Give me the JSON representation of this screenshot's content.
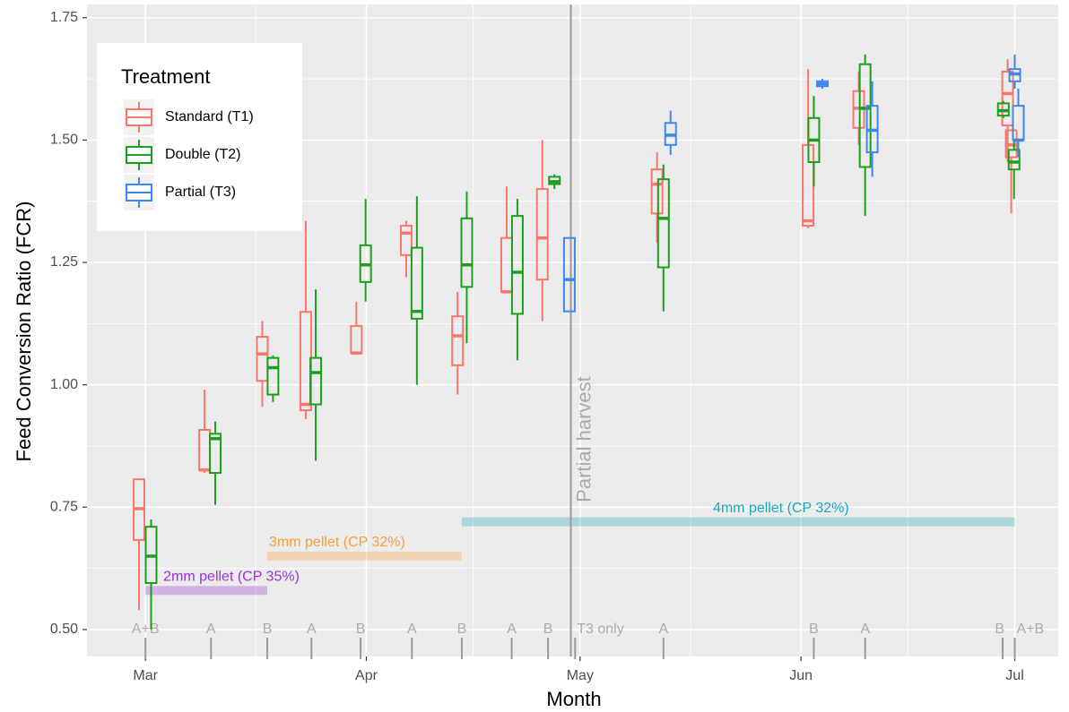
{
  "chart_data": {
    "type": "box",
    "x_label": "Month",
    "y_label": "Feed Conversion Ratio (FCR)",
    "xlim": [
      -8.2,
      128.1
    ],
    "ylim": [
      0.445,
      1.777
    ],
    "xticks": [
      {
        "value": 0,
        "label": "Mar"
      },
      {
        "value": 31,
        "label": "Apr"
      },
      {
        "value": 61,
        "label": "May"
      },
      {
        "value": 92,
        "label": "Jun"
      },
      {
        "value": 122,
        "label": "Jul"
      }
    ],
    "yticks": [
      {
        "value": 0.5,
        "label": "0.50"
      },
      {
        "value": 0.75,
        "label": "0.75"
      },
      {
        "value": 1,
        "label": "1.00"
      },
      {
        "value": 1.25,
        "label": "1.25"
      },
      {
        "value": 1.5,
        "label": "1.50"
      },
      {
        "value": 1.75,
        "label": "1.75"
      }
    ],
    "grid": true,
    "legend": {
      "title": "Treatment",
      "position": "top-left"
    },
    "series": [
      {
        "name": "Standard (T1)",
        "color": "#F8766D",
        "x": [
          -0.9,
          8.3,
          16.4,
          22.5,
          29.6,
          36.6,
          43.8,
          50.7,
          55.7,
          71.8,
          93.0,
          100.1,
          121.0,
          121.5
        ],
        "min": [
          0.54,
          0.82,
          0.955,
          0.93,
          1.065,
          1.22,
          0.98,
          1.19,
          1.13,
          1.29,
          1.32,
          1.49,
          1.455,
          1.35
        ],
        "q1": [
          0.683,
          0.826,
          1.008,
          0.948,
          1.065,
          1.265,
          1.04,
          1.19,
          1.215,
          1.35,
          1.325,
          1.525,
          1.53,
          1.465
        ],
        "median": [
          0.747,
          0.826,
          1.063,
          0.96,
          1.065,
          1.31,
          1.1,
          1.19,
          1.3,
          1.41,
          1.335,
          1.565,
          1.595,
          1.49
        ],
        "q3": [
          0.807,
          0.908,
          1.098,
          1.149,
          1.12,
          1.325,
          1.14,
          1.3,
          1.4,
          1.44,
          1.49,
          1.6,
          1.64,
          1.52
        ],
        "max": [
          0.807,
          0.99,
          1.13,
          1.335,
          1.17,
          1.335,
          1.19,
          1.405,
          1.5,
          1.475,
          1.645,
          1.64,
          1.665,
          1.52
        ]
      },
      {
        "name": "Double (T2)",
        "color": "#1E9E1E",
        "x": [
          0.8,
          9.8,
          17.9,
          23.9,
          30.9,
          38.1,
          45.1,
          52.2,
          57.4,
          72.7,
          93.8,
          101.0,
          120.4,
          121.9
        ],
        "min": [
          0.5,
          0.755,
          0.965,
          0.845,
          1.17,
          1.0,
          1.085,
          1.05,
          1.4,
          1.15,
          1.405,
          1.345,
          1.545,
          1.38
        ],
        "q1": [
          0.595,
          0.82,
          0.98,
          0.96,
          1.21,
          1.135,
          1.2,
          1.145,
          1.41,
          1.24,
          1.455,
          1.445,
          1.55,
          1.44
        ],
        "median": [
          0.65,
          0.89,
          1.035,
          1.025,
          1.245,
          1.15,
          1.245,
          1.23,
          1.415,
          1.34,
          1.5,
          1.565,
          1.56,
          1.455
        ],
        "q3": [
          0.71,
          0.9,
          1.055,
          1.055,
          1.285,
          1.28,
          1.34,
          1.345,
          1.425,
          1.42,
          1.545,
          1.655,
          1.575,
          1.48
        ],
        "max": [
          0.725,
          0.925,
          1.06,
          1.195,
          1.38,
          1.385,
          1.395,
          1.38,
          1.43,
          1.45,
          1.59,
          1.675,
          1.58,
          1.5
        ]
      },
      {
        "name": "Partial (T3)",
        "color": "#3D87EE",
        "x": [
          59.5,
          73.7,
          95.0,
          102.0,
          122.0,
          122.5
        ],
        "min": [
          1.15,
          1.47,
          1.605,
          1.425,
          1.605,
          1.465
        ],
        "q1": [
          1.15,
          1.49,
          1.61,
          1.475,
          1.62,
          1.5
        ],
        "median": [
          1.215,
          1.51,
          1.615,
          1.52,
          1.635,
          1.5
        ],
        "q3": [
          1.3,
          1.535,
          1.62,
          1.57,
          1.645,
          1.57
        ],
        "max": [
          1.3,
          1.56,
          1.625,
          1.62,
          1.675,
          1.605
        ]
      }
    ],
    "samplings": {
      "x": [
        0,
        9.2,
        17.1,
        23.3,
        30.2,
        37.4,
        44.4,
        51.4,
        56.5,
        60.3,
        72.7,
        93.8,
        101.0,
        120.3,
        122.0
      ],
      "labels": [
        "A+B",
        "A",
        "B",
        "A",
        "B",
        "A",
        "B",
        "A",
        "B",
        "T3 only",
        "A",
        "B",
        "A",
        "B",
        "A+B"
      ]
    },
    "feed_phases": [
      {
        "label": "2mm pellet (CP 35%)",
        "color": "#A030D8",
        "x": [
          0,
          17.1
        ],
        "y": 0.58
      },
      {
        "label": "3mm pellet (CP 32%)",
        "color": "#F5A030",
        "x": [
          17.1,
          44.4
        ],
        "y": 0.65
      },
      {
        "label": "4mm pellet (CP 32%)",
        "color": "#18A8BA",
        "x": [
          44.4,
          122.0
        ],
        "y": 0.72
      }
    ],
    "partial_harvest": {
      "x": 59.7,
      "label": "Partial harvest",
      "color": "#9a9a9a"
    }
  }
}
